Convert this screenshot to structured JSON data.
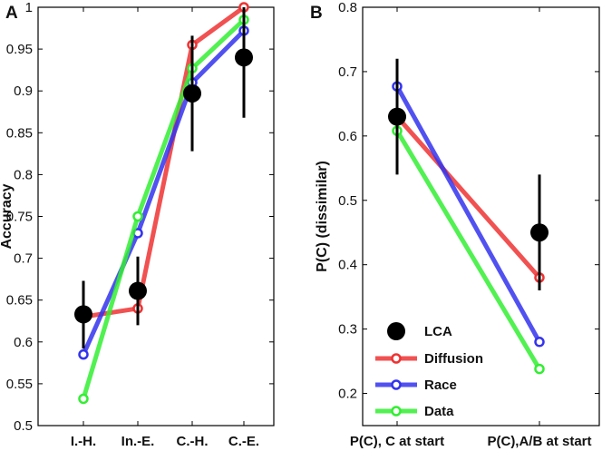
{
  "chart_data": [
    {
      "panel": "A",
      "type": "line",
      "ylabel": "Accuracy",
      "xlabel": "",
      "ylim": [
        0.5,
        1.0
      ],
      "yticks": [
        "0.5",
        "0.55",
        "0.6",
        "0.65",
        "0.7",
        "0.75",
        "0.8",
        "0.85",
        "0.9",
        "0.95",
        "1"
      ],
      "categories": [
        "I.-H.",
        "In.-E.",
        "C.-H.",
        "C.-E."
      ],
      "series": [
        {
          "name": "Diffusion",
          "color": "#ee3333",
          "values": [
            0.63,
            0.64,
            0.955,
            1.0
          ]
        },
        {
          "name": "Race",
          "color": "#3333ee",
          "values": [
            0.585,
            0.73,
            0.91,
            0.972
          ]
        },
        {
          "name": "Data",
          "color": "#33ee33",
          "values": [
            0.532,
            0.75,
            0.927,
            0.985
          ]
        }
      ],
      "lca": {
        "name": "LCA",
        "color": "#000000",
        "values": [
          0.633,
          0.661,
          0.897,
          0.94
        ],
        "error_low": [
          0.592,
          0.62,
          0.828,
          0.868
        ],
        "error_high": [
          0.673,
          0.702,
          0.966,
          1.0
        ]
      }
    },
    {
      "panel": "B",
      "type": "line",
      "ylabel": "P(C) (dissimilar)",
      "xlabel": "",
      "ylim": [
        0.15,
        0.8
      ],
      "yticks": [
        "0.2",
        "0.3",
        "0.4",
        "0.5",
        "0.6",
        "0.7",
        "0.8"
      ],
      "categories": [
        "P(C), C at start",
        "P(C),A/B at start"
      ],
      "series": [
        {
          "name": "Diffusion",
          "color": "#ee3333",
          "values": [
            0.63,
            0.38
          ]
        },
        {
          "name": "Race",
          "color": "#3333ee",
          "values": [
            0.677,
            0.28
          ]
        },
        {
          "name": "Data",
          "color": "#33ee33",
          "values": [
            0.608,
            0.238
          ]
        }
      ],
      "lca": {
        "name": "LCA",
        "color": "#000000",
        "values": [
          0.63,
          0.45
        ],
        "error_low": [
          0.54,
          0.36
        ],
        "error_high": [
          0.72,
          0.54
        ]
      },
      "legend": [
        "LCA",
        "Diffusion",
        "Race",
        "Data"
      ],
      "legend_position": "bottom-left"
    }
  ]
}
